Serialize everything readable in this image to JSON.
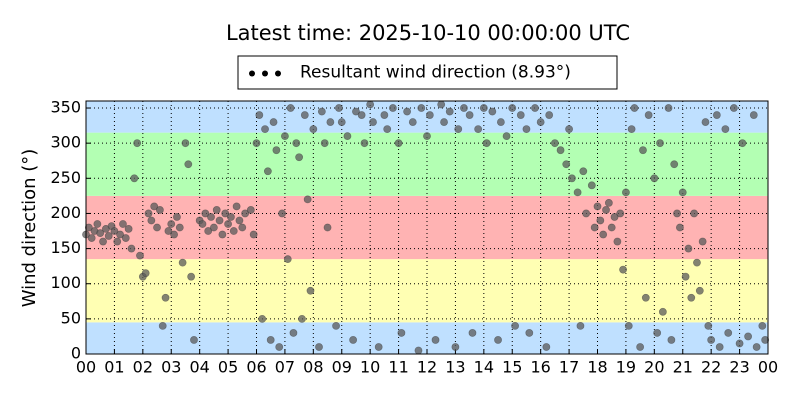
{
  "chart_data": {
    "type": "scatter",
    "title": "Latest time: 2025-10-10 00:00:00 UTC",
    "y_label": "Wind direction (°)",
    "xlim": [
      0,
      24
    ],
    "ylim": [
      0,
      360
    ],
    "xticks": [
      {
        "value": 0,
        "label": "00"
      },
      {
        "value": 1,
        "label": "01"
      },
      {
        "value": 2,
        "label": "02"
      },
      {
        "value": 3,
        "label": "03"
      },
      {
        "value": 4,
        "label": "04"
      },
      {
        "value": 5,
        "label": "05"
      },
      {
        "value": 6,
        "label": "06"
      },
      {
        "value": 7,
        "label": "07"
      },
      {
        "value": 8,
        "label": "08"
      },
      {
        "value": 9,
        "label": "09"
      },
      10,
      11,
      12,
      13,
      14,
      15,
      16,
      17,
      18,
      19,
      20,
      21,
      22,
      23,
      {
        "value": 24,
        "label": "00"
      }
    ],
    "yticks": [
      0,
      50,
      100,
      150,
      200,
      250,
      300,
      350
    ],
    "grid": true,
    "legend": "upper center",
    "bands": [
      {
        "from": 0,
        "to": 45,
        "color": "#bfe0ff"
      },
      {
        "from": 45,
        "to": 135,
        "color": "#ffffb3"
      },
      {
        "from": 135,
        "to": 225,
        "color": "#ffb3b3"
      },
      {
        "from": 225,
        "to": 315,
        "color": "#b3ffb3"
      },
      {
        "from": 315,
        "to": 360,
        "color": "#bfe0ff"
      }
    ],
    "series": [
      {
        "name": "Resultant wind direction (8.93°)",
        "color": "#5a5a5a",
        "x": [
          0.0,
          0.1,
          0.2,
          0.3,
          0.4,
          0.5,
          0.6,
          0.7,
          0.8,
          0.9,
          1.0,
          1.1,
          1.2,
          1.3,
          1.4,
          1.5,
          1.6,
          1.7,
          1.8,
          1.9,
          2.0,
          2.1,
          2.2,
          2.3,
          2.4,
          2.5,
          2.6,
          2.7,
          2.8,
          2.9,
          3.0,
          3.1,
          3.2,
          3.3,
          3.4,
          3.5,
          3.6,
          3.7,
          3.8,
          4.0,
          4.1,
          4.2,
          4.3,
          4.4,
          4.5,
          4.6,
          4.7,
          4.8,
          4.9,
          5.0,
          5.1,
          5.2,
          5.3,
          5.4,
          5.5,
          5.6,
          5.8,
          5.9,
          6.0,
          6.1,
          6.2,
          6.3,
          6.4,
          6.5,
          6.6,
          6.7,
          6.8,
          6.9,
          7.0,
          7.1,
          7.2,
          7.3,
          7.4,
          7.5,
          7.6,
          7.7,
          7.8,
          7.9,
          8.0,
          8.2,
          8.3,
          8.4,
          8.5,
          8.6,
          8.8,
          8.9,
          9.0,
          9.2,
          9.4,
          9.5,
          9.7,
          9.8,
          10.0,
          10.1,
          10.3,
          10.5,
          10.6,
          10.8,
          11.0,
          11.1,
          11.3,
          11.5,
          11.7,
          11.8,
          12.0,
          12.1,
          12.3,
          12.5,
          12.6,
          12.8,
          13.0,
          13.1,
          13.3,
          13.5,
          13.6,
          13.8,
          14.0,
          14.1,
          14.3,
          14.5,
          14.6,
          14.8,
          15.0,
          15.1,
          15.3,
          15.5,
          15.6,
          15.8,
          16.0,
          16.2,
          16.3,
          16.5,
          16.7,
          16.9,
          17.0,
          17.1,
          17.3,
          17.4,
          17.5,
          17.6,
          17.8,
          17.9,
          18.0,
          18.1,
          18.2,
          18.3,
          18.4,
          18.5,
          18.6,
          18.7,
          18.8,
          18.9,
          19.0,
          19.1,
          19.2,
          19.3,
          19.5,
          19.6,
          19.7,
          19.8,
          20.0,
          20.1,
          20.2,
          20.3,
          20.5,
          20.6,
          20.7,
          20.8,
          20.9,
          21.0,
          21.1,
          21.2,
          21.3,
          21.4,
          21.5,
          21.6,
          21.7,
          21.8,
          21.9,
          22.0,
          22.2,
          22.3,
          22.5,
          22.6,
          22.8,
          23.0,
          23.1,
          23.3,
          23.5,
          23.6,
          23.8,
          23.9
        ],
        "values": [
          170,
          180,
          165,
          175,
          185,
          172,
          160,
          178,
          168,
          182,
          175,
          160,
          170,
          185,
          165,
          178,
          150,
          250,
          300,
          140,
          110,
          115,
          200,
          190,
          210,
          180,
          205,
          40,
          80,
          175,
          185,
          170,
          195,
          180,
          130,
          300,
          270,
          110,
          20,
          190,
          185,
          200,
          175,
          195,
          180,
          205,
          190,
          170,
          200,
          185,
          195,
          175,
          210,
          190,
          180,
          200,
          205,
          170,
          300,
          340,
          50,
          320,
          260,
          20,
          330,
          290,
          10,
          200,
          310,
          135,
          350,
          30,
          300,
          280,
          50,
          340,
          220,
          90,
          320,
          10,
          345,
          300,
          180,
          330,
          40,
          350,
          330,
          310,
          20,
          345,
          340,
          300,
          355,
          330,
          10,
          340,
          320,
          350,
          300,
          30,
          345,
          330,
          5,
          350,
          310,
          340,
          20,
          355,
          330,
          345,
          10,
          320,
          350,
          340,
          30,
          320,
          350,
          300,
          345,
          20,
          330,
          310,
          350,
          40,
          340,
          320,
          30,
          350,
          330,
          10,
          340,
          300,
          290,
          270,
          320,
          250,
          230,
          40,
          260,
          200,
          240,
          180,
          210,
          190,
          170,
          205,
          215,
          180,
          195,
          160,
          200,
          120,
          230,
          40,
          320,
          350,
          10,
          290,
          80,
          340,
          250,
          30,
          300,
          60,
          350,
          20,
          270,
          200,
          180,
          230,
          110,
          150,
          80,
          200,
          130,
          90,
          160,
          330,
          40,
          20,
          340,
          10,
          320,
          30,
          350,
          15,
          300,
          25,
          340,
          10,
          40,
          20
        ]
      }
    ]
  }
}
